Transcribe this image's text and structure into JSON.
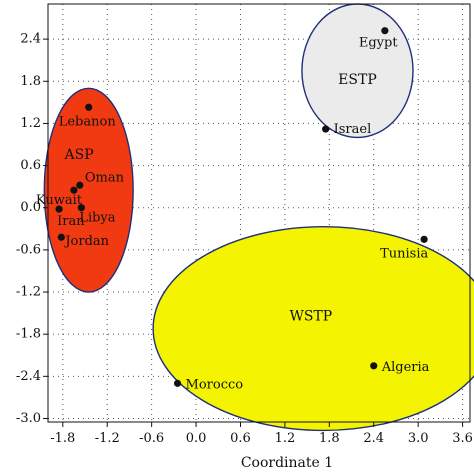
{
  "chart_data": {
    "type": "scatter",
    "xlabel": "Coordinate 1",
    "ylabel": "",
    "title": "",
    "xlim": [
      -2.0,
      3.7
    ],
    "ylim": [
      -3.05,
      2.9
    ],
    "x_ticks": [
      -1.8,
      -1.2,
      -0.6,
      0.0,
      0.6,
      1.2,
      1.8,
      2.4,
      3.0,
      3.6
    ],
    "x_tick_labels": [
      "-1.8",
      "-1.2",
      "-0.6",
      "0.0",
      "0.6",
      "1.2",
      "1.8",
      "2.4",
      "3.0",
      "3.6"
    ],
    "y_ticks": [
      -3.0,
      -2.4,
      -1.8,
      -1.2,
      -0.6,
      0.0,
      0.6,
      1.2,
      1.8,
      2.4
    ],
    "y_tick_labels": [
      "-3.0",
      "-2.4",
      "-1.8",
      "-1.2",
      "-0.6",
      "0.0",
      "0.6",
      "1.2",
      "1.8",
      "2.4"
    ],
    "grid": "dotted",
    "points": [
      {
        "label": "Egypt",
        "x": 2.55,
        "y": 2.52
      },
      {
        "label": "Israel",
        "x": 1.75,
        "y": 1.12
      },
      {
        "label": "Lebanon",
        "x": -1.45,
        "y": 1.43
      },
      {
        "label": "Oman",
        "x": -1.57,
        "y": 0.32
      },
      {
        "label": "Kuwait",
        "x": -1.65,
        "y": 0.25
      },
      {
        "label": "Libya",
        "x": -1.55,
        "y": 0.0
      },
      {
        "label": "Iran",
        "x": -1.85,
        "y": -0.02
      },
      {
        "label": "Jordan",
        "x": -1.82,
        "y": -0.42
      },
      {
        "label": "Tunisia",
        "x": 3.08,
        "y": -0.45
      },
      {
        "label": "Algeria",
        "x": 2.4,
        "y": -2.25
      },
      {
        "label": "Morocco",
        "x": -0.25,
        "y": -2.5
      }
    ],
    "clusters": [
      {
        "label": "ESTP",
        "cx": 2.18,
        "cy": 1.95,
        "rx": 0.75,
        "ry": 0.95,
        "color": "#ebebeb"
      },
      {
        "label": "ASP",
        "cx": -1.45,
        "cy": 0.25,
        "rx": 0.6,
        "ry": 1.45,
        "color": "#f23a12"
      },
      {
        "label": "WSTP",
        "cx": 1.72,
        "cy": -1.72,
        "rx": 2.3,
        "ry": 1.45,
        "color": "#f4f400"
      }
    ],
    "cluster_label_positions": {
      "ESTP": {
        "x": 2.18,
        "y": 1.82
      },
      "ASP": {
        "x": -1.58,
        "y": 0.75
      },
      "WSTP": {
        "x": 1.55,
        "y": -1.55
      }
    },
    "point_label_offsets": {
      "Egypt": {
        "dx": -26,
        "dy": 16
      },
      "Israel": {
        "dx": 8,
        "dy": 4
      },
      "Lebanon": {
        "dx": -30,
        "dy": 18
      },
      "Oman": {
        "dx": 5,
        "dy": -4
      },
      "Kuwait": {
        "dx": -38,
        "dy": 14
      },
      "Libya": {
        "dx": -2,
        "dy": 14
      },
      "Iran": {
        "dx": -2,
        "dy": 16
      },
      "Jordan": {
        "dx": 4,
        "dy": 8
      },
      "Tunisia": {
        "dx": -44,
        "dy": 18
      },
      "Algeria": {
        "dx": 8,
        "dy": 5
      },
      "Morocco": {
        "dx": 8,
        "dy": 5
      }
    },
    "colors": {
      "outline": "#1f2f7a",
      "point": "#111111",
      "grid": "#555555"
    }
  }
}
